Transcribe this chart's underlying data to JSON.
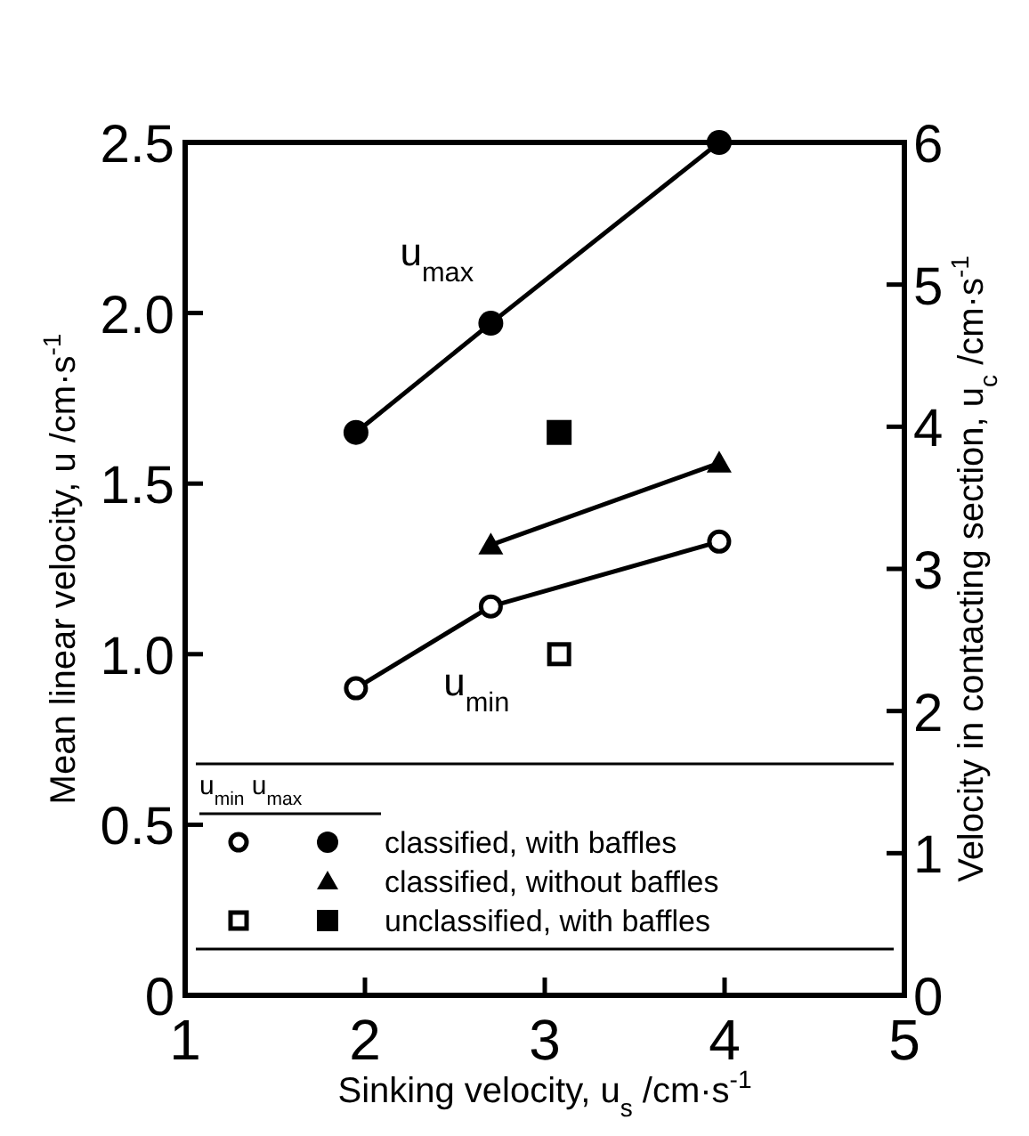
{
  "chart_data": {
    "type": "line",
    "xlabel": "Sinking velocity, u$_{s}$ /cm·s$^{-1}$",
    "ylabel": "Mean linear velocity, u /cm·s$^{-1}$",
    "y2label": "Velocity in contacting section, u$_{c}$ /cm·s$^{-1}$",
    "xlim": [
      1,
      5
    ],
    "xticks": [
      1,
      2,
      3,
      4,
      5
    ],
    "ylim": [
      0,
      2.5
    ],
    "yticks": [
      0,
      0.5,
      {
        "value": 1,
        "label": "1.0"
      },
      1.5,
      {
        "value": 2,
        "label": "2.0"
      },
      2.5
    ],
    "y2lim": [
      0,
      6
    ],
    "y2ticks": [
      0,
      1,
      2,
      3,
      4,
      5,
      6
    ],
    "legend": "bottom",
    "legend_title": "u$_{min}$  u$_{max}$",
    "line_style": "solid",
    "annotations": [
      "u$_{max}$",
      "u$_{min}$"
    ],
    "series": [
      {
        "marker": "circle",
        "color": "#ffffff",
        "x": [
          1.95,
          2.7,
          3.97
        ],
        "values": [
          0.9,
          1.14,
          1.33
        ]
      },
      {
        "name": "classified, with baffles",
        "marker": "circle",
        "color": "#000000",
        "x": [
          1.95,
          2.7,
          3.97
        ],
        "values": [
          1.65,
          1.97,
          2.5
        ]
      },
      {
        "name": "classified, without baffles",
        "marker": "triangle",
        "color": "#000000",
        "x": [
          2.7,
          3.97
        ],
        "values": [
          1.32,
          1.56
        ]
      },
      {
        "type": "scatter",
        "marker": "square",
        "color": "#ffffff",
        "x": [
          3.08
        ],
        "values": [
          1.0
        ]
      },
      {
        "name": "unclassified, with baffles",
        "type": "scatter",
        "marker": "square",
        "color": "#000000",
        "x": [
          3.08
        ],
        "values": [
          1.65
        ]
      }
    ]
  }
}
